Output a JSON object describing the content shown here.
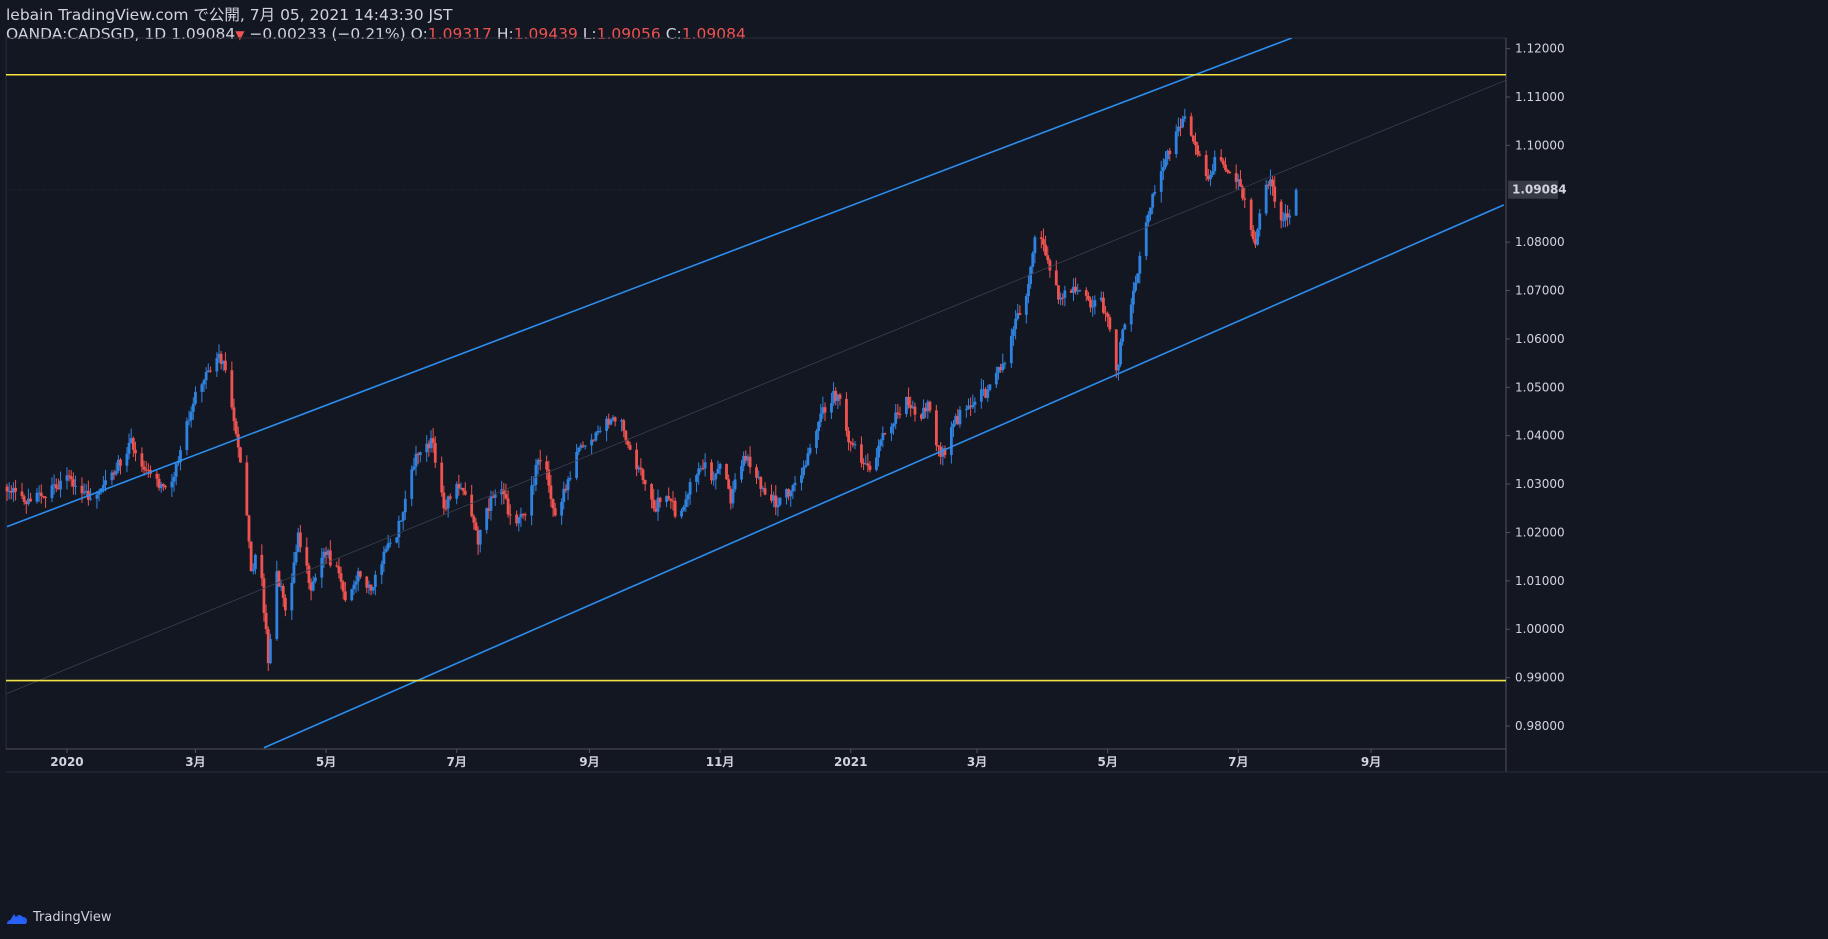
{
  "header": {
    "published": "lebain TradingView.com で公開, 7月 05, 2021 14:43:30 JST",
    "symbol": "OANDA:CADSGD, 1D",
    "last": "1.09084",
    "arrow": "▼",
    "change": "−0.00233 (−0.21%)",
    "o_label": "O:",
    "o_value": "1.09317",
    "h_label": "H:",
    "h_value": "1.09439",
    "l_label": "L:",
    "l_value": "1.09056",
    "c_label": "C:",
    "c_value": "1.09084"
  },
  "footer": {
    "brand": "TradingView",
    "logo_icon": "tradingview-cloud-icon"
  },
  "colors": {
    "background": "#131722",
    "up": "#2f83e0",
    "down": "#ef5350",
    "channel": "#2a8ef0",
    "level": "#f5e342",
    "axis_text": "#d1d4dc",
    "price_badge": "#363a45"
  },
  "chart_data": {
    "type": "candlestick",
    "title": "OANDA:CADSGD, 1D",
    "current_price": 1.09084,
    "current_price_label": "1.09084",
    "ylim": [
      0.975,
      1.1225
    ],
    "y_ticks": [
      {
        "value": 1.12,
        "label": "1.12000"
      },
      {
        "value": 1.11,
        "label": "1.11000"
      },
      {
        "value": 1.1,
        "label": "1.10000"
      },
      {
        "value": 1.08,
        "label": "1.08000"
      },
      {
        "value": 1.07,
        "label": "1.07000"
      },
      {
        "value": 1.06,
        "label": "1.06000"
      },
      {
        "value": 1.05,
        "label": "1.05000"
      },
      {
        "value": 1.04,
        "label": "1.04000"
      },
      {
        "value": 1.03,
        "label": "1.03000"
      },
      {
        "value": 1.02,
        "label": "1.02000"
      },
      {
        "value": 1.01,
        "label": "1.01000"
      },
      {
        "value": 1.0,
        "label": "1.00000"
      },
      {
        "value": 0.99,
        "label": "0.99000"
      },
      {
        "value": 0.98,
        "label": "0.98000"
      }
    ],
    "x_ticks": [
      {
        "label": "2020",
        "day": 28
      },
      {
        "label": "3月",
        "day": 88
      },
      {
        "label": "5月",
        "day": 149
      },
      {
        "label": "7月",
        "day": 210
      },
      {
        "label": "9月",
        "day": 272
      },
      {
        "label": "11月",
        "day": 333
      },
      {
        "label": "2021",
        "day": 394
      },
      {
        "label": "3月",
        "day": 453
      },
      {
        "label": "5月",
        "day": 514
      },
      {
        "label": "7月",
        "day": 575
      },
      {
        "label": "9月",
        "day": 637
      }
    ],
    "day_range": [
      0,
      700
    ],
    "horizontal_levels": [
      1.1146,
      0.9894
    ],
    "channel": {
      "upper": {
        "start": [
          0,
          1.0212
        ],
        "end": [
          600,
          1.1222
        ]
      },
      "lower": {
        "start": [
          120,
          0.9755
        ],
        "end": [
          699,
          1.0877
        ]
      },
      "mid_visible_start_day": 0
    },
    "anchors": [
      {
        "day": 0,
        "price": 1.0285
      },
      {
        "day": 10,
        "price": 1.027
      },
      {
        "day": 20,
        "price": 1.0285
      },
      {
        "day": 30,
        "price": 1.031
      },
      {
        "day": 40,
        "price": 1.0265
      },
      {
        "day": 50,
        "price": 1.032
      },
      {
        "day": 58,
        "price": 1.0395
      },
      {
        "day": 64,
        "price": 1.033
      },
      {
        "day": 72,
        "price": 1.03
      },
      {
        "day": 78,
        "price": 1.0315
      },
      {
        "day": 84,
        "price": 1.043
      },
      {
        "day": 90,
        "price": 1.05
      },
      {
        "day": 97,
        "price": 1.0565
      },
      {
        "day": 101,
        "price": 1.0555
      },
      {
        "day": 106,
        "price": 1.043
      },
      {
        "day": 111,
        "price": 1.03
      },
      {
        "day": 114,
        "price": 1.012
      },
      {
        "day": 118,
        "price": 1.016
      },
      {
        "day": 122,
        "price": 0.993
      },
      {
        "day": 126,
        "price": 1.012
      },
      {
        "day": 131,
        "price": 1.002
      },
      {
        "day": 136,
        "price": 1.02
      },
      {
        "day": 142,
        "price": 1.008
      },
      {
        "day": 148,
        "price": 1.016
      },
      {
        "day": 154,
        "price": 1.013
      },
      {
        "day": 158,
        "price": 1.006
      },
      {
        "day": 164,
        "price": 1.012
      },
      {
        "day": 170,
        "price": 1.008
      },
      {
        "day": 176,
        "price": 1.016
      },
      {
        "day": 182,
        "price": 1.019
      },
      {
        "day": 188,
        "price": 1.032
      },
      {
        "day": 194,
        "price": 1.039
      },
      {
        "day": 199,
        "price": 1.0385
      },
      {
        "day": 204,
        "price": 1.025
      },
      {
        "day": 210,
        "price": 1.03
      },
      {
        "day": 216,
        "price": 1.026
      },
      {
        "day": 220,
        "price": 1.0175
      },
      {
        "day": 224,
        "price": 1.025
      },
      {
        "day": 230,
        "price": 1.029
      },
      {
        "day": 236,
        "price": 1.023
      },
      {
        "day": 242,
        "price": 1.0235
      },
      {
        "day": 248,
        "price": 1.035
      },
      {
        "day": 252,
        "price": 1.033
      },
      {
        "day": 256,
        "price": 1.0235
      },
      {
        "day": 262,
        "price": 1.031
      },
      {
        "day": 268,
        "price": 1.038
      },
      {
        "day": 274,
        "price": 1.039
      },
      {
        "day": 280,
        "price": 1.0435
      },
      {
        "day": 286,
        "price": 1.044
      },
      {
        "day": 292,
        "price": 1.036
      },
      {
        "day": 298,
        "price": 1.03
      },
      {
        "day": 302,
        "price": 1.025
      },
      {
        "day": 308,
        "price": 1.0275
      },
      {
        "day": 314,
        "price": 1.023
      },
      {
        "day": 320,
        "price": 1.0315
      },
      {
        "day": 326,
        "price": 1.0345
      },
      {
        "day": 330,
        "price": 1.031
      },
      {
        "day": 334,
        "price": 1.034
      },
      {
        "day": 338,
        "price": 1.026
      },
      {
        "day": 342,
        "price": 1.035
      },
      {
        "day": 348,
        "price": 1.034
      },
      {
        "day": 352,
        "price": 1.029
      },
      {
        "day": 356,
        "price": 1.026
      },
      {
        "day": 362,
        "price": 1.027
      },
      {
        "day": 366,
        "price": 1.0285
      },
      {
        "day": 372,
        "price": 1.0335
      },
      {
        "day": 378,
        "price": 1.041
      },
      {
        "day": 383,
        "price": 1.047
      },
      {
        "day": 388,
        "price": 1.0485
      },
      {
        "day": 392,
        "price": 1.041
      },
      {
        "day": 398,
        "price": 1.035
      },
      {
        "day": 404,
        "price": 1.034
      },
      {
        "day": 410,
        "price": 1.0405
      },
      {
        "day": 416,
        "price": 1.0445
      },
      {
        "day": 420,
        "price": 1.048
      },
      {
        "day": 426,
        "price": 1.042
      },
      {
        "day": 430,
        "price": 1.047
      },
      {
        "day": 434,
        "price": 1.038
      },
      {
        "day": 438,
        "price": 1.036
      },
      {
        "day": 442,
        "price": 1.0425
      },
      {
        "day": 448,
        "price": 1.0455
      },
      {
        "day": 454,
        "price": 1.048
      },
      {
        "day": 458,
        "price": 1.0495
      },
      {
        "day": 462,
        "price": 1.053
      },
      {
        "day": 466,
        "price": 1.055
      },
      {
        "day": 470,
        "price": 1.062
      },
      {
        "day": 475,
        "price": 1.067
      },
      {
        "day": 480,
        "price": 1.081
      },
      {
        "day": 484,
        "price": 1.0795
      },
      {
        "day": 488,
        "price": 1.071
      },
      {
        "day": 493,
        "price": 1.0685
      },
      {
        "day": 497,
        "price": 1.0695
      },
      {
        "day": 502,
        "price": 1.0705
      },
      {
        "day": 506,
        "price": 1.0665
      },
      {
        "day": 510,
        "price": 1.0685
      },
      {
        "day": 514,
        "price": 1.0645
      },
      {
        "day": 518,
        "price": 1.0535
      },
      {
        "day": 522,
        "price": 1.063
      },
      {
        "day": 526,
        "price": 1.07
      },
      {
        "day": 530,
        "price": 1.078
      },
      {
        "day": 535,
        "price": 1.09
      },
      {
        "day": 540,
        "price": 1.0955
      },
      {
        "day": 545,
        "price": 1.1005
      },
      {
        "day": 549,
        "price": 1.1055
      },
      {
        "day": 553,
        "price": 1.102
      },
      {
        "day": 557,
        "price": 1.098
      },
      {
        "day": 561,
        "price": 1.093
      },
      {
        "day": 565,
        "price": 1.0975
      },
      {
        "day": 570,
        "price": 1.0945
      },
      {
        "day": 575,
        "price": 1.093
      },
      {
        "day": 579,
        "price": 1.0875
      },
      {
        "day": 583,
        "price": 1.0795
      },
      {
        "day": 587,
        "price": 1.0935
      },
      {
        "day": 591,
        "price": 1.0915
      },
      {
        "day": 595,
        "price": 1.0845
      },
      {
        "day": 599,
        "price": 1.0855
      },
      {
        "day": 602,
        "price": 1.0908
      }
    ]
  }
}
